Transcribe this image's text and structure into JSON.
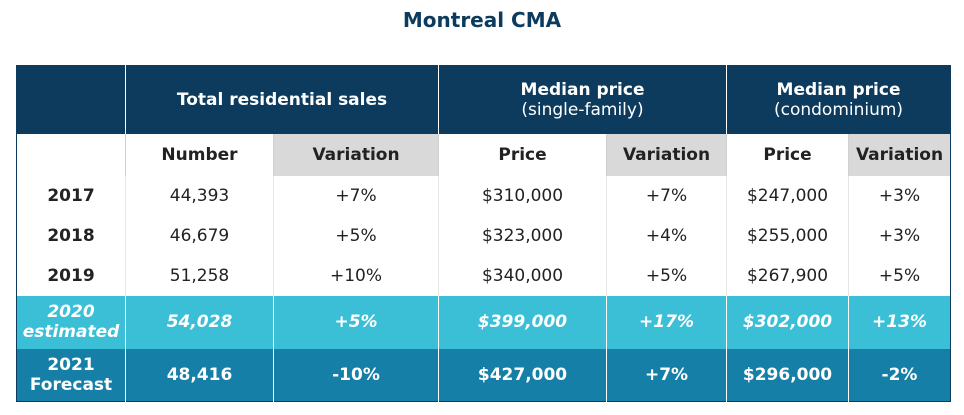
{
  "title": "Montreal CMA",
  "table": {
    "groups": [
      {
        "title": "Total residential sales"
      },
      {
        "title": "Median price",
        "subtitle": "(single-family)"
      },
      {
        "title": "Median price",
        "subtitle": "(condominium)"
      }
    ],
    "subheaders": [
      "Number",
      "Variation",
      "Price",
      "Variation",
      "Price",
      "Variation"
    ],
    "rows": [
      {
        "label": "2017",
        "cells": [
          "44,393",
          "+7%",
          "$310,000",
          "+7%",
          "$247,000",
          "+3%"
        ]
      },
      {
        "label": "2018",
        "cells": [
          "46,679",
          "+5%",
          "$323,000",
          "+4%",
          "$255,000",
          "+3%"
        ]
      },
      {
        "label": "2019",
        "cells": [
          "51,258",
          "+10%",
          "$340,000",
          "+5%",
          "$267,900",
          "+5%"
        ]
      },
      {
        "label": "2020",
        "sublabel": "estimated",
        "cells": [
          "54,028",
          "+5%",
          "$399,000",
          "+17%",
          "$302,000",
          "+13%"
        ]
      },
      {
        "label": "2021",
        "sublabel": "Forecast",
        "cells": [
          "48,416",
          "-10%",
          "$427,000",
          "+7%",
          "$296,000",
          "-2%"
        ]
      }
    ]
  }
}
